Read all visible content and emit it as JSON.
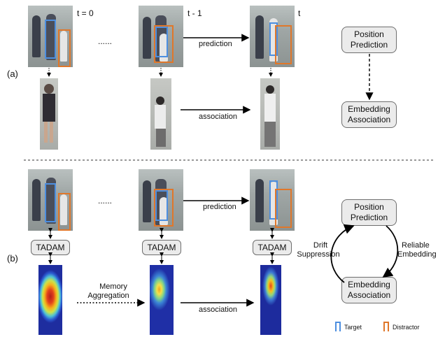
{
  "part_a": {
    "label": "(a)",
    "time_labels": [
      "t = 0",
      "t - 1",
      "t"
    ],
    "ellipsis": "......",
    "prediction_label": "prediction",
    "association_label": "association",
    "position_prediction_line1": "Position",
    "position_prediction_line2": "Prediction",
    "embedding_association_line1": "Embedding",
    "embedding_association_line2": "Association"
  },
  "part_b": {
    "label": "(b)",
    "ellipsis": "......",
    "prediction_label": "prediction",
    "association_label": "association",
    "tadam_label": "TADAM",
    "memory_line1": "Memory",
    "memory_line2": "Aggregation",
    "position_prediction_line1": "Position",
    "position_prediction_line2": "Prediction",
    "embedding_association_line1": "Embedding",
    "embedding_association_line2": "Association",
    "drift_line1": "Drift",
    "drift_line2": "Suppression",
    "reliable_line1": "Reliable",
    "reliable_line2": "Embedding"
  },
  "legend": {
    "target_label": "Target",
    "distractor_label": "Distractor",
    "target_color": "#4d8fe0",
    "distractor_color": "#e0772a"
  }
}
